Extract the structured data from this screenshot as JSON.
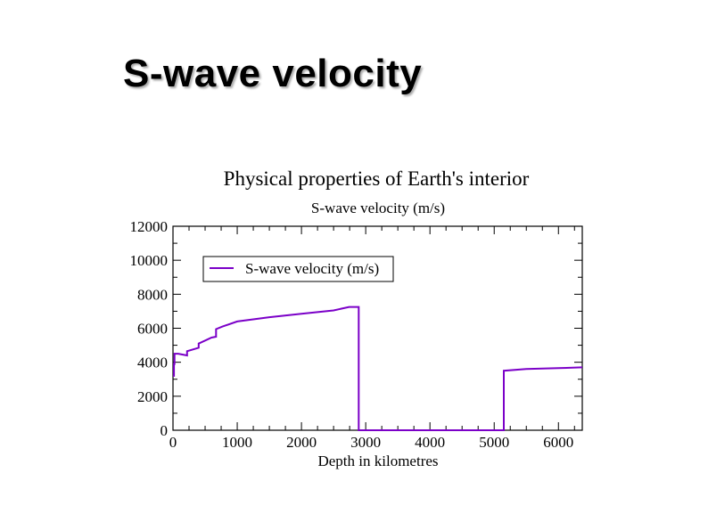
{
  "slide": {
    "title": "S-wave velocity"
  },
  "chart_data": {
    "type": "line",
    "title": "Physical properties of Earth's interior",
    "subtitle": "S-wave velocity (m/s)",
    "xlabel": "Depth in kilometres",
    "ylabel": "",
    "xlim": [
      0,
      6371
    ],
    "ylim": [
      0,
      12000
    ],
    "x_ticks": [
      0,
      1000,
      2000,
      3000,
      4000,
      5000,
      6000
    ],
    "y_ticks": [
      0,
      2000,
      4000,
      6000,
      8000,
      10000,
      12000
    ],
    "grid": false,
    "legend": {
      "position": "top-left",
      "entries": [
        "S-wave velocity (m/s)"
      ]
    },
    "series": [
      {
        "name": "S-wave velocity (m/s)",
        "color": "#7b00c8",
        "x": [
          0,
          15,
          15,
          24,
          24,
          80,
          220,
          220,
          400,
          400,
          600,
          670,
          670,
          771,
          1000,
          1500,
          2000,
          2500,
          2741,
          2891,
          2891,
          5150,
          5150,
          5500,
          6000,
          6371
        ],
        "y": [
          3200,
          3200,
          3900,
          3900,
          4500,
          4500,
          4400,
          4650,
          4850,
          5100,
          5450,
          5500,
          5950,
          6100,
          6400,
          6650,
          6850,
          7050,
          7250,
          7250,
          0,
          0,
          3500,
          3600,
          3650,
          3700
        ]
      }
    ]
  }
}
